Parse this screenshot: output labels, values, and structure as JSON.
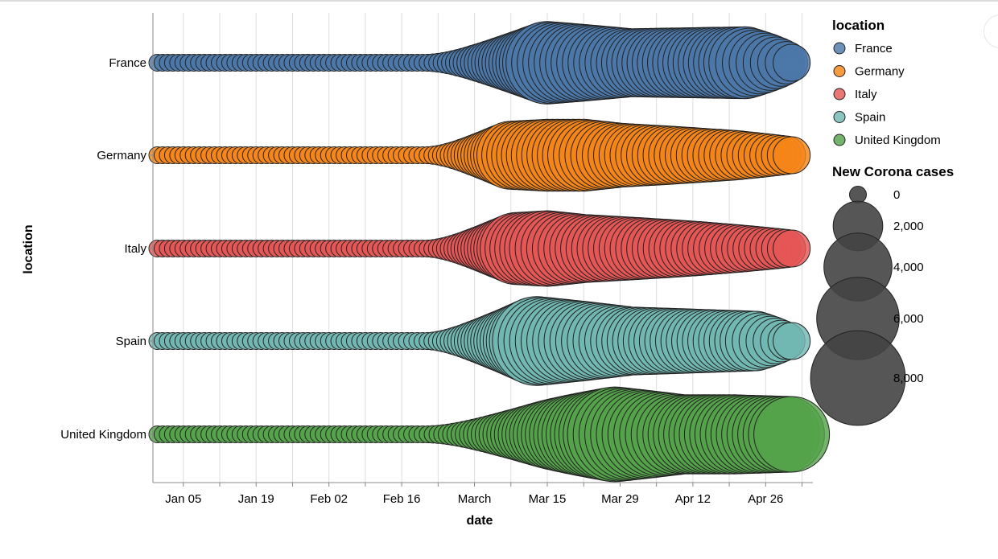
{
  "chart_data": {
    "type": "scatter",
    "mark": "circle",
    "xlabel": "date",
    "ylabel": "location",
    "x_ticks": [
      "Jan 05",
      "Jan 19",
      "Feb 02",
      "Feb 16",
      "March",
      "Mar 15",
      "Mar 29",
      "Apr 12",
      "Apr 26"
    ],
    "x_range": [
      "2019-12-31",
      "2020-05-01"
    ],
    "grid": true,
    "color_legend": {
      "title": "location",
      "placement": "top-right",
      "entries": [
        {
          "name": "France",
          "color": "#4c78a8"
        },
        {
          "name": "Germany",
          "color": "#f58518"
        },
        {
          "name": "Italy",
          "color": "#e45756"
        },
        {
          "name": "Spain",
          "color": "#72b7b2"
        },
        {
          "name": "United Kingdom",
          "color": "#54a24b"
        }
      ]
    },
    "size_legend": {
      "title": "New Corona cases",
      "values": [
        0,
        2000,
        4000,
        6000,
        8000
      ],
      "labels": [
        "0",
        "2,000",
        "4,000",
        "6,000",
        "8,000"
      ]
    },
    "series": [
      {
        "name": "France",
        "x": [
          "2020-03-15",
          "2020-03-31",
          "2020-04-22",
          "2020-05-01"
        ],
        "new_cases": [
          6000,
          4000,
          4500,
          1000
        ]
      },
      {
        "name": "Germany",
        "x": [
          "2020-03-08",
          "2020-03-15",
          "2020-03-22",
          "2020-03-29",
          "2020-04-20",
          "2020-05-01"
        ],
        "new_cases": [
          4000,
          4500,
          4500,
          3500,
          2000,
          1000
        ]
      },
      {
        "name": "Italy",
        "x": [
          "2020-03-09",
          "2020-03-15",
          "2020-03-22",
          "2020-03-29",
          "2020-04-12",
          "2020-05-01"
        ],
        "new_cases": [
          4500,
          5000,
          4000,
          3500,
          2500,
          1000
        ]
      },
      {
        "name": "Spain",
        "x": [
          "2020-03-13",
          "2020-03-22",
          "2020-03-31",
          "2020-04-24",
          "2020-04-30"
        ],
        "new_cases": [
          7000,
          5500,
          4000,
          3000,
          1000
        ]
      },
      {
        "name": "United Kingdom",
        "x": [
          "2020-03-15",
          "2020-03-28",
          "2020-04-10",
          "2020-04-20",
          "2020-05-01"
        ],
        "new_cases": [
          4000,
          8000,
          5500,
          5500,
          5000
        ]
      }
    ]
  }
}
